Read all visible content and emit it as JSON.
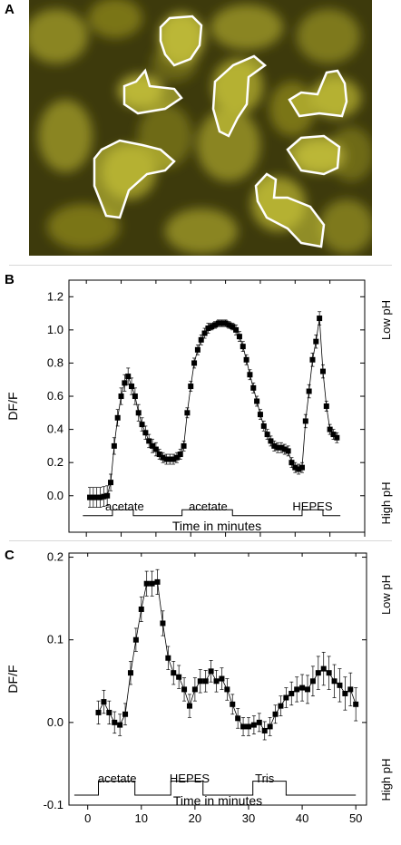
{
  "panel_labels": {
    "a": "A",
    "b": "B",
    "c": "C"
  },
  "micrograph": {
    "background_color": "#3d3a0c",
    "cell_fill_color": "#c8c43a",
    "roi_outline_color": "#ffffff",
    "roi_count": 7
  },
  "chart_data": [
    {
      "type": "scatter",
      "panel": "B",
      "xlabel": "Time in minutes",
      "ylabel": "DF/F",
      "right_labels": {
        "top": "Low pH",
        "bottom": "High pH"
      },
      "xlim": [
        -5,
        80
      ],
      "ylim": [
        -0.22,
        1.3
      ],
      "xticks": [
        0,
        10,
        20,
        30,
        40,
        50,
        60,
        70,
        80
      ],
      "yticks": [
        0.0,
        0.2,
        0.4,
        0.6,
        0.8,
        1.0,
        1.2
      ],
      "marker": "filled-square",
      "error_bars": true,
      "points": [
        [
          1.0,
          -0.01,
          0.06
        ],
        [
          2.0,
          -0.01,
          0.06
        ],
        [
          3.0,
          -0.01,
          0.06
        ],
        [
          4.0,
          -0.01,
          0.06
        ],
        [
          5.0,
          -0.005,
          0.06
        ],
        [
          6.0,
          0.0,
          0.06
        ],
        [
          7.0,
          0.08,
          0.05
        ],
        [
          8.0,
          0.3,
          0.05
        ],
        [
          9.0,
          0.47,
          0.05
        ],
        [
          10.0,
          0.6,
          0.05
        ],
        [
          11.0,
          0.68,
          0.05
        ],
        [
          12.0,
          0.72,
          0.05
        ],
        [
          13.0,
          0.66,
          0.05
        ],
        [
          14.0,
          0.6,
          0.05
        ],
        [
          15.0,
          0.5,
          0.05
        ],
        [
          16.0,
          0.43,
          0.04
        ],
        [
          17.0,
          0.38,
          0.04
        ],
        [
          18.0,
          0.33,
          0.04
        ],
        [
          19.0,
          0.3,
          0.04
        ],
        [
          20.0,
          0.28,
          0.04
        ],
        [
          21.0,
          0.25,
          0.03
        ],
        [
          22.0,
          0.23,
          0.03
        ],
        [
          23.0,
          0.22,
          0.03
        ],
        [
          24.0,
          0.22,
          0.03
        ],
        [
          25.0,
          0.22,
          0.03
        ],
        [
          26.0,
          0.23,
          0.03
        ],
        [
          27.0,
          0.25,
          0.03
        ],
        [
          28.0,
          0.3,
          0.03
        ],
        [
          29.0,
          0.5,
          0.03
        ],
        [
          30.0,
          0.66,
          0.03
        ],
        [
          31.0,
          0.8,
          0.03
        ],
        [
          32.0,
          0.88,
          0.03
        ],
        [
          33.0,
          0.94,
          0.03
        ],
        [
          34.0,
          0.98,
          0.03
        ],
        [
          35.0,
          1.01,
          0.03
        ],
        [
          36.0,
          1.02,
          0.02
        ],
        [
          37.0,
          1.03,
          0.02
        ],
        [
          38.0,
          1.04,
          0.02
        ],
        [
          39.0,
          1.04,
          0.02
        ],
        [
          40.0,
          1.04,
          0.02
        ],
        [
          41.0,
          1.03,
          0.02
        ],
        [
          42.0,
          1.02,
          0.02
        ],
        [
          43.0,
          1.0,
          0.03
        ],
        [
          44.0,
          0.96,
          0.03
        ],
        [
          45.0,
          0.9,
          0.03
        ],
        [
          46.0,
          0.82,
          0.03
        ],
        [
          47.0,
          0.73,
          0.03
        ],
        [
          48.0,
          0.65,
          0.03
        ],
        [
          49.0,
          0.57,
          0.03
        ],
        [
          50.0,
          0.49,
          0.03
        ],
        [
          51.0,
          0.42,
          0.03
        ],
        [
          52.0,
          0.37,
          0.03
        ],
        [
          53.0,
          0.33,
          0.03
        ],
        [
          54.0,
          0.3,
          0.03
        ],
        [
          55.0,
          0.29,
          0.03
        ],
        [
          56.0,
          0.29,
          0.03
        ],
        [
          57.0,
          0.28,
          0.03
        ],
        [
          58.0,
          0.27,
          0.03
        ],
        [
          59.0,
          0.2,
          0.03
        ],
        [
          60.0,
          0.17,
          0.03
        ],
        [
          61.0,
          0.16,
          0.03
        ],
        [
          62.0,
          0.17,
          0.03
        ],
        [
          63.0,
          0.45,
          0.04
        ],
        [
          64.0,
          0.63,
          0.04
        ],
        [
          65.0,
          0.82,
          0.04
        ],
        [
          66.0,
          0.93,
          0.04
        ],
        [
          67.0,
          1.07,
          0.04
        ],
        [
          68.0,
          0.75,
          0.04
        ],
        [
          69.0,
          0.54,
          0.03
        ],
        [
          70.0,
          0.4,
          0.03
        ],
        [
          71.0,
          0.37,
          0.03
        ],
        [
          72.0,
          0.35,
          0.03
        ]
      ],
      "stimulus_labels": [
        {
          "text": "acetate",
          "x": 11
        },
        {
          "text": "acetate",
          "x": 35
        },
        {
          "text": "HEPES",
          "x": 65
        }
      ],
      "stimulus_trace": [
        [
          -1,
          -0.12
        ],
        [
          7.5,
          -0.12
        ],
        [
          7.5,
          -0.085
        ],
        [
          13.5,
          -0.085
        ],
        [
          13.5,
          -0.12
        ],
        [
          27.5,
          -0.12
        ],
        [
          27.5,
          -0.085
        ],
        [
          42,
          -0.085
        ],
        [
          42,
          -0.12
        ],
        [
          62,
          -0.12
        ],
        [
          62,
          -0.085
        ],
        [
          68,
          -0.085
        ],
        [
          68,
          -0.12
        ],
        [
          73,
          -0.12
        ]
      ]
    },
    {
      "type": "scatter",
      "panel": "C",
      "xlabel": "Time in minutes",
      "ylabel": "DF/F",
      "right_labels": {
        "top": "Low pH",
        "bottom": "High pH"
      },
      "xlim": [
        -3.5,
        52
      ],
      "ylim": [
        -0.1,
        0.205
      ],
      "xticks": [
        0,
        10,
        20,
        30,
        40,
        50
      ],
      "yticks": [
        -0.1,
        0.0,
        0.1,
        0.2
      ],
      "marker": "filled-square",
      "error_bars": true,
      "points": [
        [
          2.0,
          0.012,
          0.014
        ],
        [
          3.0,
          0.025,
          0.014
        ],
        [
          4.0,
          0.012,
          0.014
        ],
        [
          5.0,
          0.0,
          0.013
        ],
        [
          6.0,
          -0.003,
          0.013
        ],
        [
          7.0,
          0.01,
          0.013
        ],
        [
          8.0,
          0.06,
          0.014
        ],
        [
          9.0,
          0.1,
          0.014
        ],
        [
          10.0,
          0.137,
          0.015
        ],
        [
          11.0,
          0.168,
          0.015
        ],
        [
          12.0,
          0.168,
          0.015
        ],
        [
          13.0,
          0.17,
          0.015
        ],
        [
          14.0,
          0.12,
          0.015
        ],
        [
          15.0,
          0.078,
          0.014
        ],
        [
          16.0,
          0.06,
          0.014
        ],
        [
          17.0,
          0.055,
          0.014
        ],
        [
          18.0,
          0.04,
          0.014
        ],
        [
          19.0,
          0.02,
          0.014
        ],
        [
          20.0,
          0.04,
          0.014
        ],
        [
          21.0,
          0.05,
          0.014
        ],
        [
          22.0,
          0.05,
          0.013
        ],
        [
          23.0,
          0.062,
          0.013
        ],
        [
          24.0,
          0.05,
          0.013
        ],
        [
          25.0,
          0.053,
          0.013
        ],
        [
          26.0,
          0.04,
          0.013
        ],
        [
          27.0,
          0.022,
          0.012
        ],
        [
          28.0,
          0.005,
          0.012
        ],
        [
          29.0,
          -0.005,
          0.011
        ],
        [
          30.0,
          -0.005,
          0.011
        ],
        [
          31.0,
          -0.003,
          0.011
        ],
        [
          32.0,
          0.0,
          0.011
        ],
        [
          33.0,
          -0.01,
          0.011
        ],
        [
          34.0,
          -0.005,
          0.011
        ],
        [
          35.0,
          0.01,
          0.011
        ],
        [
          36.0,
          0.02,
          0.012
        ],
        [
          37.0,
          0.03,
          0.012
        ],
        [
          38.0,
          0.035,
          0.014
        ],
        [
          39.0,
          0.04,
          0.015
        ],
        [
          40.0,
          0.042,
          0.016
        ],
        [
          41.0,
          0.04,
          0.017
        ],
        [
          42.0,
          0.05,
          0.018
        ],
        [
          43.0,
          0.06,
          0.02
        ],
        [
          44.0,
          0.065,
          0.02
        ],
        [
          45.0,
          0.06,
          0.02
        ],
        [
          46.0,
          0.05,
          0.02
        ],
        [
          47.0,
          0.045,
          0.02
        ],
        [
          48.0,
          0.035,
          0.02
        ],
        [
          49.0,
          0.04,
          0.02
        ],
        [
          50.0,
          0.022,
          0.02
        ]
      ],
      "stimulus_labels": [
        {
          "text": "acetate",
          "x": 5.5
        },
        {
          "text": "HEPES",
          "x": 19
        },
        {
          "text": "Tris",
          "x": 33
        }
      ],
      "stimulus_trace": [
        [
          -2.5,
          -0.088
        ],
        [
          2,
          -0.088
        ],
        [
          2,
          -0.071
        ],
        [
          8.8,
          -0.071
        ],
        [
          8.8,
          -0.088
        ],
        [
          15.5,
          -0.088
        ],
        [
          15.5,
          -0.071
        ],
        [
          21.5,
          -0.071
        ],
        [
          21.5,
          -0.088
        ],
        [
          30.8,
          -0.088
        ],
        [
          30.8,
          -0.071
        ],
        [
          37,
          -0.071
        ],
        [
          37,
          -0.088
        ],
        [
          50,
          -0.088
        ]
      ]
    }
  ]
}
